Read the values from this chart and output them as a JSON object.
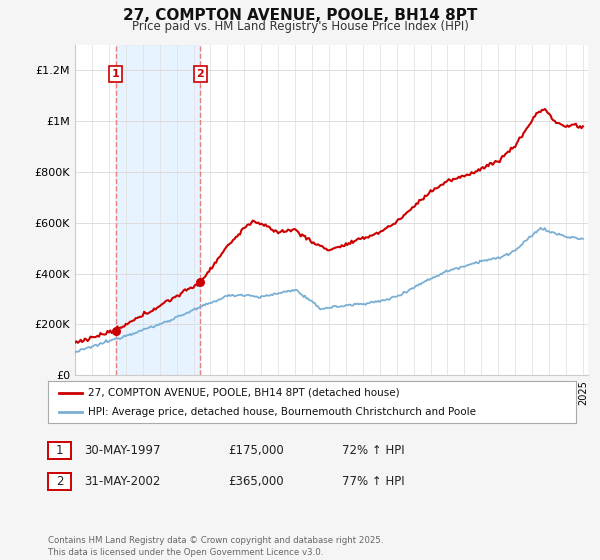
{
  "title": "27, COMPTON AVENUE, POOLE, BH14 8PT",
  "subtitle": "Price paid vs. HM Land Registry's House Price Index (HPI)",
  "ylim": [
    0,
    1300000
  ],
  "yticks": [
    0,
    200000,
    400000,
    600000,
    800000,
    1000000,
    1200000
  ],
  "ytick_labels": [
    "£0",
    "£200K",
    "£400K",
    "£600K",
    "£800K",
    "£1M",
    "£1.2M"
  ],
  "x_start_year": 1995,
  "x_end_year": 2025,
  "purchase1_year": 1997.41,
  "purchase1_price": 175000,
  "purchase1_label": "1",
  "purchase2_year": 2002.41,
  "purchase2_price": 365000,
  "purchase2_label": "2",
  "legend_line1": "27, COMPTON AVENUE, POOLE, BH14 8PT (detached house)",
  "legend_line2": "HPI: Average price, detached house, Bournemouth Christchurch and Poole",
  "table_row1": [
    "1",
    "30-MAY-1997",
    "£175,000",
    "72% ↑ HPI"
  ],
  "table_row2": [
    "2",
    "31-MAY-2002",
    "£365,000",
    "77% ↑ HPI"
  ],
  "footnote": "Contains HM Land Registry data © Crown copyright and database right 2025.\nThis data is licensed under the Open Government Licence v3.0.",
  "line_color_red": "#cc0000",
  "line_color_blue": "#7aafd4",
  "vline_color": "#e88080",
  "shade_color": "#ddeeff",
  "bg_color": "#f5f5f5",
  "plot_bg": "#ffffff",
  "grid_color": "#dddddd"
}
